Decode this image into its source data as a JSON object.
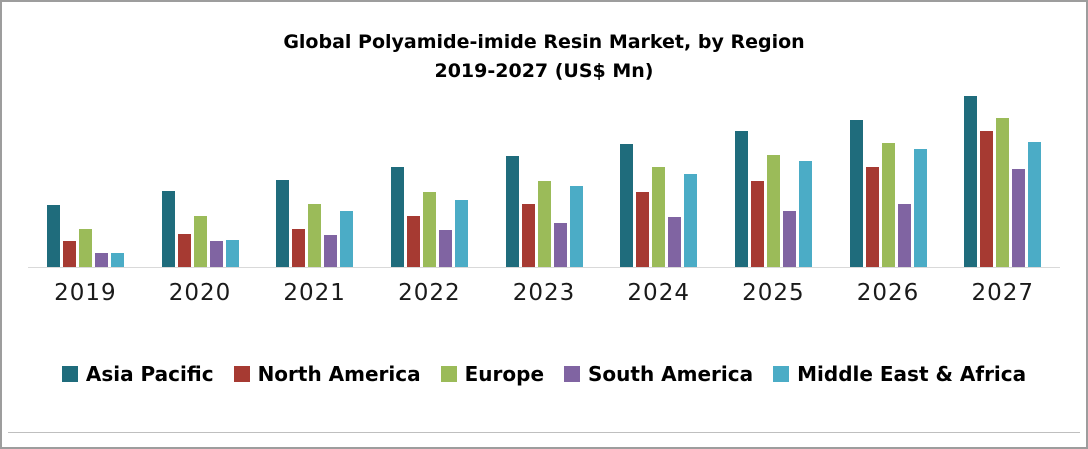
{
  "title": {
    "line1": "Global Polyamide-imide Resin Market, by Region",
    "line2": "2019-2027 (US$ Mn)"
  },
  "chart_data": {
    "type": "bar",
    "title": "Global Polyamide-imide Resin Market, by Region 2019-2027 (US$ Mn)",
    "unit": "US$ Mn",
    "categories": [
      "2019",
      "2020",
      "2021",
      "2022",
      "2023",
      "2024",
      "2025",
      "2026",
      "2027"
    ],
    "series": [
      {
        "name": "Asia Pacific",
        "color": "#1f6c7c",
        "values": [
          65,
          80,
          92,
          105,
          117,
          130,
          143,
          155,
          180
        ]
      },
      {
        "name": "North America",
        "color": "#a63a32",
        "values": [
          27,
          35,
          40,
          54,
          66,
          79,
          91,
          105,
          143
        ]
      },
      {
        "name": "Europe",
        "color": "#9bbb59",
        "values": [
          40,
          54,
          66,
          79,
          91,
          105,
          118,
          131,
          157
        ]
      },
      {
        "name": "South America",
        "color": "#8064a2",
        "values": [
          15,
          27,
          34,
          39,
          46,
          53,
          59,
          66,
          103
        ]
      },
      {
        "name": "Middle East & Africa",
        "color": "#4bacc6",
        "values": [
          15,
          28,
          59,
          71,
          85,
          98,
          112,
          124,
          132
        ]
      }
    ],
    "ylim": [
      0,
      195
    ],
    "grid": false,
    "legend_position": "bottom",
    "xlabel": "",
    "ylabel": ""
  }
}
